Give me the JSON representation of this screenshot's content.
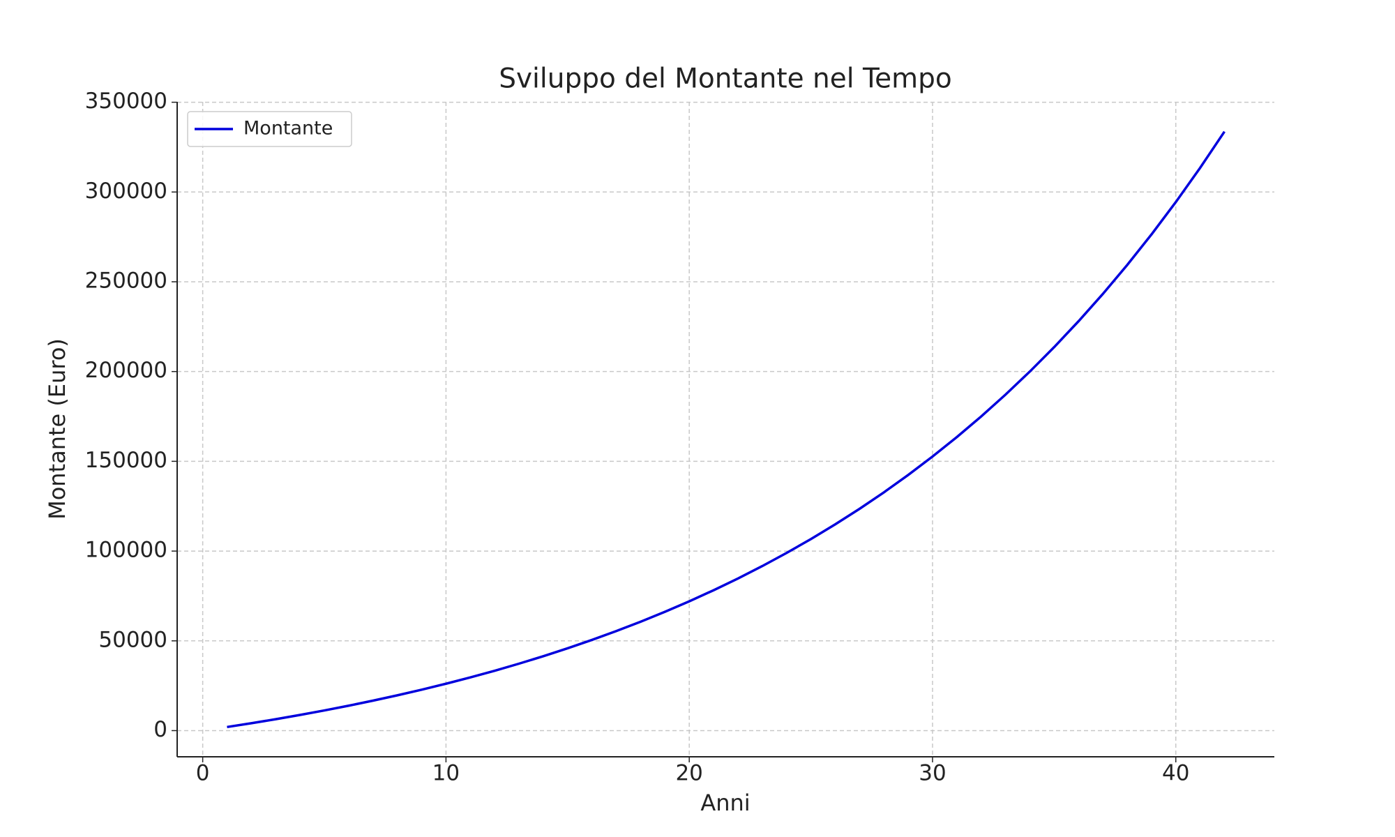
{
  "chart_data": {
    "type": "line",
    "title": "Sviluppo del Montante nel Tempo",
    "x_label": "Anni",
    "y_label": "Montante (Euro)",
    "x": [
      1,
      2,
      3,
      4,
      5,
      6,
      7,
      8,
      9,
      10,
      11,
      12,
      13,
      14,
      15,
      16,
      17,
      18,
      19,
      20,
      21,
      22,
      23,
      24,
      25,
      26,
      27,
      28,
      29,
      30,
      31,
      32,
      33,
      34,
      35,
      36,
      37,
      38,
      39,
      40,
      41,
      42
    ],
    "series": [
      {
        "name": "Montante",
        "color": "#0000dd",
        "values": [
          2000,
          4116,
          6355,
          8723,
          11229,
          13881,
          16686,
          19653,
          22793,
          26115,
          29630,
          33349,
          37283,
          41445,
          45849,
          50508,
          55438,
          60653,
          66171,
          72009,
          78185,
          84720,
          91634,
          98949,
          106688,
          114875,
          123539,
          132704,
          142400,
          152660,
          163514,
          174998,
          187148,
          200002,
          213602,
          227991,
          243215,
          259321,
          276362,
          294391,
          313465,
          333646
        ]
      }
    ],
    "xlim": [
      -1.05,
      44.05
    ],
    "ylim": [
      -14582,
      350228
    ],
    "xticks": [
      0,
      10,
      20,
      30,
      40
    ],
    "yticks": [
      0,
      50000,
      100000,
      150000,
      200000,
      250000,
      300000,
      350000
    ],
    "grid": true,
    "legend": "upper left"
  }
}
